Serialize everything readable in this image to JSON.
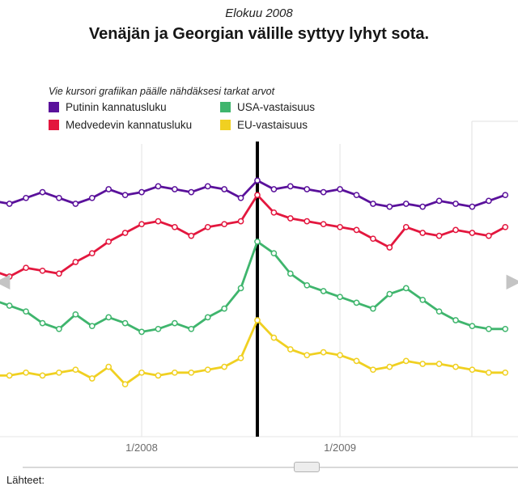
{
  "page": {
    "kicker": "Elokuu 2008",
    "title": "Venäjän ja Georgian välille syttyy lyhyt sota.",
    "hint": "Vie kursori grafiikan päälle nähdäksesi tarkat arvot",
    "footer_fragment": "Lähteet:"
  },
  "legend_items": [
    {
      "label": "Putinin kannatusluku",
      "color": "#5a119b"
    },
    {
      "label": "USA-vastaisuus",
      "color": "#3fb56d"
    },
    {
      "label": "Medvedevin kannatusluku",
      "color": "#e3173e"
    },
    {
      "label": "EU-vastaisuus",
      "color": "#f0d021"
    }
  ],
  "nav": {
    "prev_icon": "◀",
    "next_icon": "▶"
  },
  "chart_data": {
    "type": "line",
    "title": "Venäjän ja Georgian välille syttyy lyhyt sota.",
    "subtitle": "Elokuu 2008",
    "grid": "vertical-only",
    "legend_position": "top-left",
    "ylim": [
      0,
      100
    ],
    "x": [
      "4/2007",
      "5/2007",
      "6/2007",
      "7/2007",
      "8/2007",
      "9/2007",
      "10/2007",
      "11/2007",
      "12/2007",
      "1/2008",
      "2/2008",
      "3/2008",
      "4/2008",
      "5/2008",
      "6/2008",
      "7/2008",
      "8/2008",
      "9/2008",
      "10/2008",
      "11/2008",
      "12/2008",
      "1/2009",
      "2/2009",
      "3/2009",
      "4/2009",
      "5/2009",
      "6/2009",
      "7/2009",
      "8/2009",
      "9/2009",
      "10/2009",
      "11/2009"
    ],
    "x_ticks": [
      {
        "label": "1/2008",
        "index": 9
      },
      {
        "label": "1/2009",
        "index": 21
      }
    ],
    "event_marker": {
      "x_index": 16,
      "label": "Elokuu 2008",
      "color": "#000000"
    },
    "series": [
      {
        "name": "Putinin kannatusluku",
        "color": "#5a119b",
        "values": [
          81,
          80,
          82,
          84,
          82,
          80,
          82,
          85,
          83,
          84,
          86,
          85,
          84,
          86,
          85,
          82,
          88,
          85,
          86,
          85,
          84,
          85,
          83,
          80,
          79,
          80,
          79,
          81,
          80,
          79,
          81,
          83
        ]
      },
      {
        "name": "Medvedevin kannatusluku",
        "color": "#e3173e",
        "values": [
          57,
          55,
          58,
          57,
          56,
          60,
          63,
          67,
          70,
          73,
          74,
          72,
          69,
          72,
          73,
          74,
          83,
          77,
          75,
          74,
          73,
          72,
          71,
          68,
          65,
          72,
          70,
          69,
          71,
          70,
          69,
          72
        ]
      },
      {
        "name": "USA-vastaisuus",
        "color": "#3fb56d",
        "values": [
          47,
          45,
          43,
          39,
          37,
          42,
          38,
          41,
          39,
          36,
          37,
          39,
          37,
          41,
          44,
          51,
          67,
          63,
          56,
          52,
          50,
          48,
          46,
          44,
          49,
          51,
          47,
          43,
          40,
          38,
          37,
          37
        ]
      },
      {
        "name": "EU-vastaisuus",
        "color": "#f0d021",
        "values": [
          21,
          21,
          22,
          21,
          22,
          23,
          20,
          24,
          18,
          22,
          21,
          22,
          22,
          23,
          24,
          27,
          40,
          34,
          30,
          28,
          29,
          28,
          26,
          23,
          24,
          26,
          25,
          25,
          24,
          23,
          22,
          22
        ]
      }
    ]
  }
}
